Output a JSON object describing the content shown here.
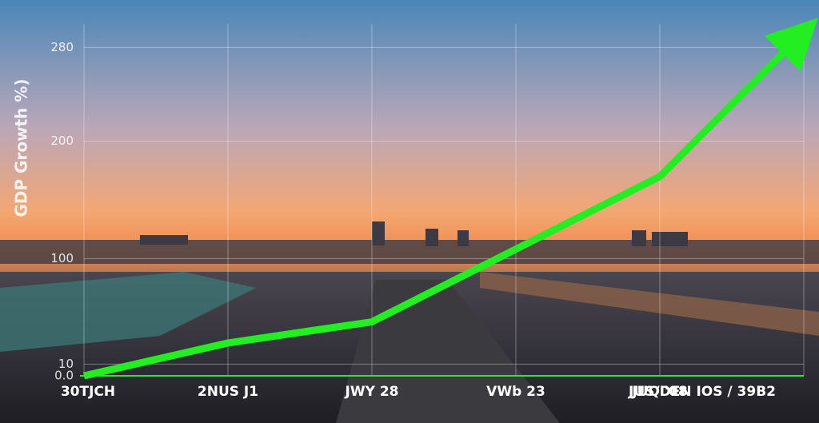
{
  "chart_data": {
    "type": "line",
    "y_label": "GDP Growth %)",
    "categories": [
      "30TJCH",
      "2NUS J1",
      "JWY 28",
      "VWb 23",
      "JUQ '08",
      "JUS/DEN IOS / 39B2"
    ],
    "series": [
      {
        "name": "GDP Growth",
        "color": "#22ee22",
        "values": [
          0,
          28,
          46,
          108,
          170,
          293
        ]
      }
    ],
    "ylim": [
      0,
      300
    ],
    "yticks": [
      280,
      200,
      100,
      {
        "value": 0,
        "label": "0.0"
      },
      10
    ],
    "grid": true
  }
}
